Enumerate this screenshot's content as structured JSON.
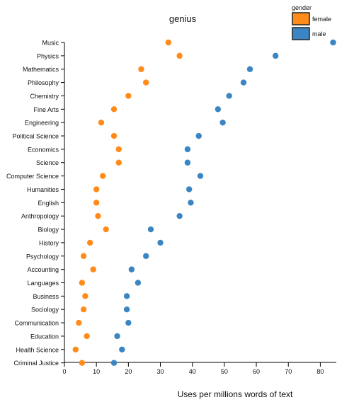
{
  "chart_data": {
    "type": "scatter",
    "title": "genius",
    "xlabel": "Uses per millions words of text",
    "ylabel": "",
    "xlim": [
      0,
      85
    ],
    "xticks": [
      0,
      10,
      20,
      30,
      40,
      50,
      60,
      70,
      80
    ],
    "grid": false,
    "legend_position": "top-right",
    "legend_title": "gender",
    "categories": [
      "Music",
      "Physics",
      "Mathematics",
      "Philosophy",
      "Chemistry",
      "Fine Arts",
      "Engineering",
      "Political Science",
      "Economics",
      "Science",
      "Computer Science",
      "Humanities",
      "English",
      "Anthropology",
      "Biology",
      "History",
      "Psychology",
      "Accounting",
      "Languages",
      "Business",
      "Sociology",
      "Communication",
      "Education",
      "Health Science",
      "Criminal Justice"
    ],
    "series": [
      {
        "name": "female",
        "color": "#ff8c1a",
        "values": [
          32.5,
          36,
          24,
          25.5,
          20,
          15.5,
          11.5,
          15.5,
          17,
          17,
          12,
          10,
          10,
          10.5,
          13,
          8,
          6,
          9,
          5.5,
          6.5,
          6,
          4.5,
          7,
          3.5,
          5.5
        ]
      },
      {
        "name": "male",
        "color": "#3a86c4",
        "values": [
          84,
          66,
          58,
          56,
          51.5,
          48,
          49.5,
          42,
          38.5,
          38.5,
          42.5,
          39,
          39.5,
          36,
          27,
          30,
          25.5,
          21,
          23,
          19.5,
          19.5,
          20,
          16.5,
          18,
          15.5
        ]
      }
    ]
  }
}
